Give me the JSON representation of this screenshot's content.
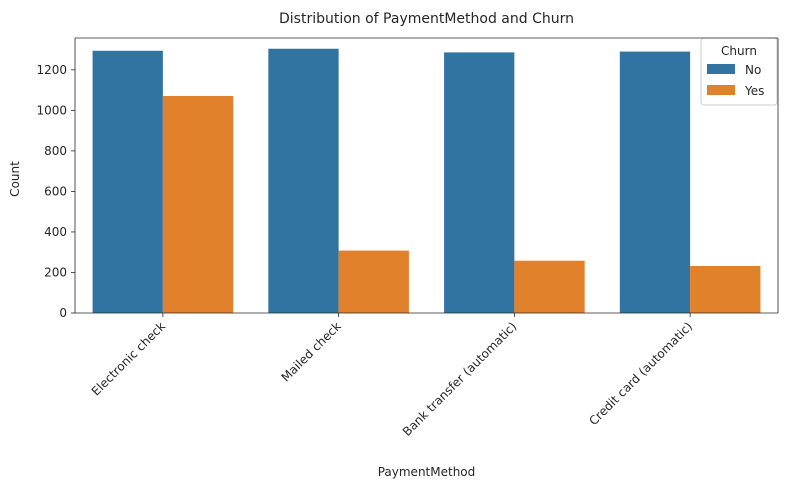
{
  "chart_data": {
    "type": "bar",
    "title": "Distribution of PaymentMethod and Churn",
    "xlabel": "PaymentMethod",
    "ylabel": "Count",
    "categories": [
      "Electronic check",
      "Mailed check",
      "Bank transfer (automatic)",
      "Credit card (automatic)"
    ],
    "series": [
      {
        "name": "No",
        "color": "#3274a1",
        "values": [
          1294,
          1304,
          1286,
          1290
        ]
      },
      {
        "name": "Yes",
        "color": "#e1812c",
        "values": [
          1071,
          308,
          258,
          232
        ]
      }
    ],
    "ylim": [
      0,
      1357
    ],
    "yticks": [
      0,
      200,
      400,
      600,
      800,
      1000,
      1200
    ],
    "legend": {
      "title": "Churn",
      "position": "top-right"
    },
    "grid": false
  }
}
